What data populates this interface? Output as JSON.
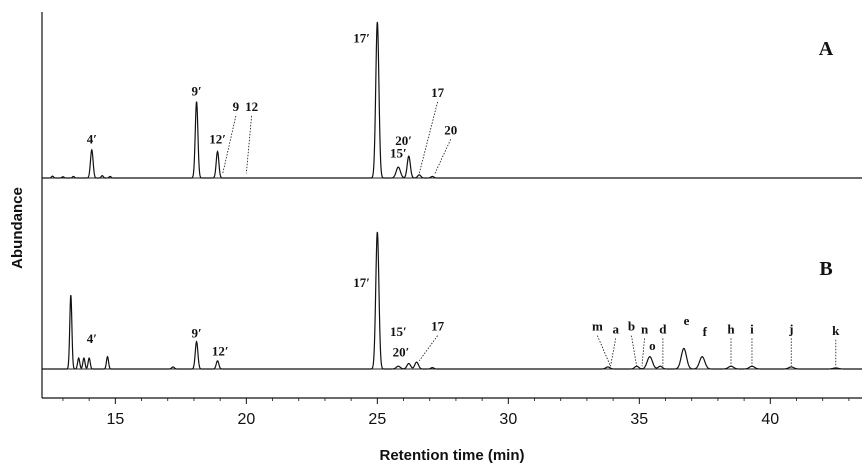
{
  "chart_data": {
    "type": "line",
    "subtype": "chromatogram",
    "xlabel": "Retention time (min)",
    "ylabel": "Abundance",
    "xlim": [
      12.2,
      43.5
    ],
    "xticks": [
      15,
      20,
      25,
      30,
      35,
      40
    ],
    "xtick_labels": [
      "15",
      "20",
      "25",
      "30",
      "35",
      "40"
    ],
    "panels": [
      {
        "label": "A",
        "ymax": 100,
        "peaks": [
          {
            "x": 12.6,
            "h": 1.2,
            "w": 0.04
          },
          {
            "x": 13.0,
            "h": 0.8,
            "w": 0.04
          },
          {
            "x": 13.4,
            "h": 1.0,
            "w": 0.04
          },
          {
            "x": 14.1,
            "h": 18,
            "w": 0.05
          },
          {
            "x": 14.5,
            "h": 1.5,
            "w": 0.04
          },
          {
            "x": 14.8,
            "h": 1.0,
            "w": 0.04
          },
          {
            "x": 18.1,
            "h": 49,
            "w": 0.05
          },
          {
            "x": 18.9,
            "h": 17,
            "w": 0.05
          },
          {
            "x": 25.0,
            "h": 100,
            "w": 0.06
          },
          {
            "x": 25.8,
            "h": 7,
            "w": 0.08
          },
          {
            "x": 26.2,
            "h": 14,
            "w": 0.06
          },
          {
            "x": 26.6,
            "h": 2,
            "w": 0.06
          },
          {
            "x": 27.1,
            "h": 1,
            "w": 0.06
          }
        ],
        "labels": [
          {
            "text": "4′",
            "x": 14.1,
            "y": 22,
            "leader": false
          },
          {
            "text": "9′",
            "x": 18.1,
            "y": 53,
            "leader": false
          },
          {
            "text": "12′",
            "x": 18.9,
            "y": 22,
            "leader": false
          },
          {
            "text": "9",
            "x": 19.6,
            "y": 43,
            "leader": true,
            "tx": 19.1,
            "ty": 3
          },
          {
            "text": "12",
            "x": 20.2,
            "y": 43,
            "leader": true,
            "tx": 20.0,
            "ty": 3
          },
          {
            "text": "17′",
            "x": 24.4,
            "y": 87,
            "leader": false
          },
          {
            "text": "15′",
            "x": 25.8,
            "y": 13,
            "leader": false
          },
          {
            "text": "20′",
            "x": 26.0,
            "y": 21,
            "leader": false
          },
          {
            "text": "17",
            "x": 27.3,
            "y": 52,
            "leader": true,
            "tx": 26.6,
            "ty": 3
          },
          {
            "text": "20",
            "x": 27.8,
            "y": 28,
            "leader": true,
            "tx": 27.2,
            "ty": 3
          }
        ]
      },
      {
        "label": "B",
        "ymax": 100,
        "peaks": [
          {
            "x": 13.3,
            "h": 54,
            "w": 0.04
          },
          {
            "x": 13.6,
            "h": 8,
            "w": 0.04
          },
          {
            "x": 13.8,
            "h": 8,
            "w": 0.04
          },
          {
            "x": 14.0,
            "h": 8,
            "w": 0.04
          },
          {
            "x": 14.7,
            "h": 9,
            "w": 0.04
          },
          {
            "x": 17.2,
            "h": 1.5,
            "w": 0.05
          },
          {
            "x": 18.1,
            "h": 20,
            "w": 0.05
          },
          {
            "x": 18.9,
            "h": 6,
            "w": 0.05
          },
          {
            "x": 25.0,
            "h": 100,
            "w": 0.06
          },
          {
            "x": 25.8,
            "h": 2,
            "w": 0.08
          },
          {
            "x": 26.2,
            "h": 4,
            "w": 0.07
          },
          {
            "x": 26.5,
            "h": 5,
            "w": 0.07
          },
          {
            "x": 27.1,
            "h": 1,
            "w": 0.06
          },
          {
            "x": 33.8,
            "h": 1.5,
            "w": 0.08
          },
          {
            "x": 34.9,
            "h": 2,
            "w": 0.08
          },
          {
            "x": 35.4,
            "h": 9,
            "w": 0.1
          },
          {
            "x": 35.8,
            "h": 2,
            "w": 0.08
          },
          {
            "x": 36.7,
            "h": 15,
            "w": 0.1
          },
          {
            "x": 37.4,
            "h": 9,
            "w": 0.1
          },
          {
            "x": 38.5,
            "h": 2,
            "w": 0.1
          },
          {
            "x": 39.3,
            "h": 2,
            "w": 0.1
          },
          {
            "x": 40.8,
            "h": 1.5,
            "w": 0.1
          },
          {
            "x": 42.5,
            "h": 0.8,
            "w": 0.1
          }
        ],
        "labels": [
          {
            "text": "4′",
            "x": 14.1,
            "y": 19,
            "leader": false
          },
          {
            "text": "9′",
            "x": 18.1,
            "y": 23,
            "leader": false
          },
          {
            "text": "12′",
            "x": 19.0,
            "y": 10,
            "leader": false
          },
          {
            "text": "17′",
            "x": 24.4,
            "y": 60,
            "leader": false
          },
          {
            "text": "15′",
            "x": 25.8,
            "y": 24,
            "leader": false
          },
          {
            "text": "20′",
            "x": 25.9,
            "y": 9,
            "leader": false
          },
          {
            "text": "17",
            "x": 27.3,
            "y": 28,
            "leader": true,
            "tx": 26.6,
            "ty": 6
          },
          {
            "text": "m",
            "x": 33.4,
            "y": 28,
            "leader": true,
            "tx": 33.9,
            "ty": 2
          },
          {
            "text": "a",
            "x": 34.1,
            "y": 26,
            "leader": true,
            "tx": 33.9,
            "ty": 2
          },
          {
            "text": "b",
            "x": 34.7,
            "y": 28,
            "leader": true,
            "tx": 34.9,
            "ty": 2
          },
          {
            "text": "n",
            "x": 35.2,
            "y": 26,
            "leader": true,
            "tx": 35.1,
            "ty": 2
          },
          {
            "text": "o",
            "x": 35.5,
            "y": 14,
            "leader": false
          },
          {
            "text": "d",
            "x": 35.9,
            "y": 26,
            "leader": true,
            "tx": 35.9,
            "ty": 2
          },
          {
            "text": "e",
            "x": 36.8,
            "y": 32,
            "leader": false
          },
          {
            "text": "f",
            "x": 37.5,
            "y": 24,
            "leader": false
          },
          {
            "text": "h",
            "x": 38.5,
            "y": 26,
            "leader": true,
            "tx": 38.5,
            "ty": 2
          },
          {
            "text": "i",
            "x": 39.3,
            "y": 26,
            "leader": true,
            "tx": 39.3,
            "ty": 2
          },
          {
            "text": "j",
            "x": 40.8,
            "y": 26,
            "leader": true,
            "tx": 40.8,
            "ty": 2
          },
          {
            "text": "k",
            "x": 42.5,
            "y": 25,
            "leader": true,
            "tx": 42.5,
            "ty": 2
          }
        ]
      }
    ],
    "grid": false,
    "legend": "none"
  }
}
